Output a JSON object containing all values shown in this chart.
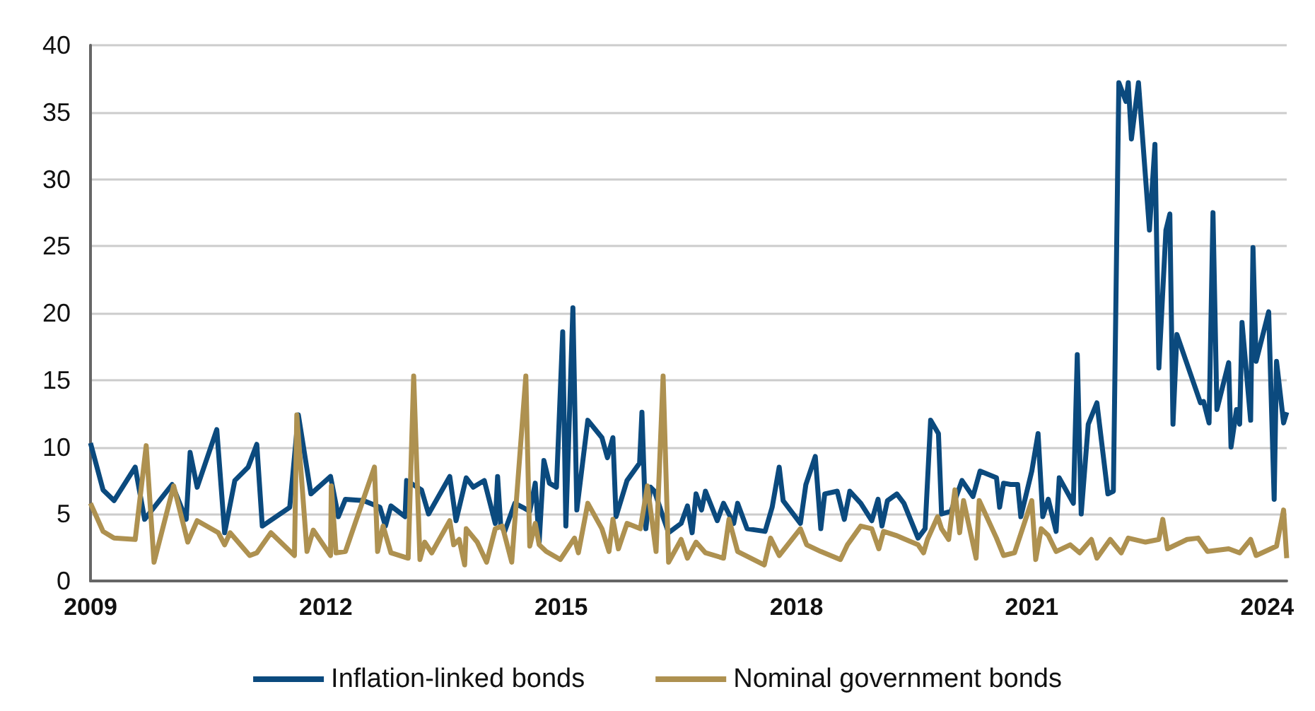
{
  "chart_data": {
    "type": "line",
    "xlim": [
      2009,
      2024.25
    ],
    "xticks": [
      2009,
      2012,
      2015,
      2018,
      2021,
      2024
    ],
    "ylim": [
      0,
      40
    ],
    "yticks": [
      0,
      5,
      10,
      15,
      20,
      25,
      30,
      35,
      40
    ],
    "grid": "y",
    "legend": "bottom",
    "marker": "none",
    "line_style": "solid",
    "series": [
      {
        "name": "Inflation-linked bonds",
        "color": "#0b4a7e",
        "x": [
          2009.0,
          2009.16,
          2009.3,
          2009.57,
          2009.69,
          2010.04,
          2010.22,
          2010.27,
          2010.36,
          2010.61,
          2010.71,
          2010.84,
          2011.01,
          2011.12,
          2011.19,
          2011.54,
          2011.65,
          2011.81,
          2012.06,
          2012.16,
          2012.25,
          2012.48,
          2012.69,
          2012.76,
          2012.83,
          2013.01,
          2013.03,
          2013.22,
          2013.31,
          2013.58,
          2013.66,
          2013.79,
          2013.88,
          2014.02,
          2014.16,
          2014.19,
          2014.23,
          2014.28,
          2014.41,
          2014.51,
          2014.6,
          2014.67,
          2014.72,
          2014.78,
          2014.85,
          2014.94,
          2015.02,
          2015.06,
          2015.15,
          2015.2,
          2015.34,
          2015.52,
          2015.59,
          2015.66,
          2015.7,
          2015.84,
          2016.0,
          2016.03,
          2016.08,
          2016.14,
          2016.19,
          2016.31,
          2016.37,
          2016.53,
          2016.61,
          2016.67,
          2016.72,
          2016.79,
          2016.84,
          2016.99,
          2017.07,
          2017.2,
          2017.25,
          2017.37,
          2017.6,
          2017.69,
          2017.78,
          2017.83,
          2018.05,
          2018.12,
          2018.24,
          2018.31,
          2018.36,
          2018.52,
          2018.61,
          2018.68,
          2018.82,
          2018.96,
          2019.04,
          2019.09,
          2019.16,
          2019.28,
          2019.37,
          2019.55,
          2019.64,
          2019.71,
          2019.81,
          2019.85,
          2019.97,
          2020.11,
          2020.25,
          2020.34,
          2020.55,
          2020.59,
          2020.64,
          2020.73,
          2020.82,
          2020.86,
          2021.0,
          2021.08,
          2021.14,
          2021.21,
          2021.31,
          2021.35,
          2021.53,
          2021.58,
          2021.63,
          2021.72,
          2021.83,
          2021.97,
          2022.04,
          2022.11,
          2022.2,
          2022.23,
          2022.27,
          2022.36,
          2022.5,
          2022.57,
          2022.62,
          2022.71,
          2022.76,
          2022.8,
          2022.85,
          2023.15,
          2023.19,
          2023.26,
          2023.31,
          2023.36,
          2023.51,
          2023.54,
          2023.61,
          2023.65,
          2023.68,
          2023.79,
          2023.82,
          2023.86,
          2024.02,
          2024.09,
          2024.12,
          2024.21,
          2024.25
        ],
        "values": [
          10.3,
          6.8,
          6.0,
          8.5,
          4.6,
          7.2,
          4.6,
          9.6,
          7.0,
          11.3,
          3.6,
          7.5,
          8.5,
          10.2,
          4.1,
          5.5,
          12.4,
          6.5,
          7.8,
          4.8,
          6.1,
          6.0,
          5.5,
          4.1,
          5.6,
          4.8,
          7.5,
          6.8,
          5.0,
          7.8,
          4.5,
          7.7,
          7.0,
          7.5,
          4.3,
          7.8,
          4.1,
          3.7,
          5.8,
          5.5,
          5.2,
          7.3,
          2.9,
          9.0,
          7.3,
          7.0,
          18.6,
          4.1,
          20.4,
          5.3,
          12.0,
          10.7,
          9.2,
          10.7,
          4.8,
          7.5,
          8.8,
          12.6,
          3.9,
          7.0,
          6.7,
          4.6,
          3.6,
          4.3,
          5.6,
          3.6,
          6.5,
          5.3,
          6.7,
          4.5,
          5.8,
          4.3,
          5.8,
          3.9,
          3.7,
          5.5,
          8.5,
          6.0,
          4.3,
          7.2,
          9.3,
          3.9,
          6.5,
          6.7,
          4.6,
          6.7,
          5.8,
          4.5,
          6.1,
          4.1,
          6.0,
          6.5,
          5.8,
          3.2,
          3.9,
          12.0,
          11.0,
          5.0,
          5.2,
          7.5,
          6.3,
          8.2,
          7.7,
          5.5,
          7.3,
          7.2,
          7.2,
          4.8,
          8.2,
          11.0,
          4.8,
          6.1,
          3.7,
          7.7,
          5.8,
          16.9,
          5.0,
          11.7,
          13.3,
          6.5,
          6.7,
          37.2,
          35.8,
          37.2,
          33.0,
          37.2,
          26.2,
          32.6,
          15.9,
          26.2,
          27.4,
          11.7,
          18.4,
          13.3,
          13.4,
          11.8,
          27.5,
          12.8,
          16.3,
          10.0,
          12.8,
          11.7,
          19.3,
          12.0,
          24.9,
          16.4,
          20.1,
          6.1,
          16.4,
          11.8,
          12.6
        ]
      },
      {
        "name": "Nominal government bonds",
        "color": "#ae9150",
        "x": [
          2009.0,
          2009.16,
          2009.3,
          2009.57,
          2009.71,
          2009.81,
          2010.06,
          2010.24,
          2010.36,
          2010.63,
          2010.71,
          2010.78,
          2011.03,
          2011.12,
          2011.3,
          2011.6,
          2011.63,
          2011.76,
          2011.84,
          2012.06,
          2012.07,
          2012.13,
          2012.25,
          2012.62,
          2012.66,
          2012.73,
          2012.83,
          2013.05,
          2013.12,
          2013.2,
          2013.26,
          2013.35,
          2013.58,
          2013.63,
          2013.7,
          2013.77,
          2013.79,
          2013.93,
          2014.05,
          2014.16,
          2014.25,
          2014.37,
          2014.55,
          2014.6,
          2014.67,
          2014.72,
          2014.81,
          2014.99,
          2015.17,
          2015.22,
          2015.34,
          2015.52,
          2015.61,
          2015.66,
          2015.73,
          2015.84,
          2016.01,
          2016.1,
          2016.21,
          2016.3,
          2016.37,
          2016.53,
          2016.61,
          2016.72,
          2016.84,
          2017.07,
          2017.14,
          2017.25,
          2017.59,
          2017.67,
          2017.78,
          2018.05,
          2018.13,
          2018.31,
          2018.56,
          2018.65,
          2018.82,
          2018.96,
          2019.05,
          2019.11,
          2019.27,
          2019.55,
          2019.62,
          2019.67,
          2019.8,
          2019.85,
          2019.94,
          2020.02,
          2020.08,
          2020.13,
          2020.29,
          2020.33,
          2020.55,
          2020.64,
          2020.78,
          2021.0,
          2021.05,
          2021.12,
          2021.21,
          2021.31,
          2021.49,
          2021.61,
          2021.76,
          2021.83,
          2022.0,
          2022.14,
          2022.23,
          2022.45,
          2022.62,
          2022.67,
          2022.73,
          2022.98,
          2023.12,
          2023.24,
          2023.51,
          2023.65,
          2023.79,
          2023.86,
          2024.12,
          2024.21,
          2024.25
        ],
        "values": [
          5.8,
          3.7,
          3.2,
          3.1,
          10.1,
          1.4,
          7.1,
          2.9,
          4.5,
          3.6,
          2.7,
          3.6,
          1.9,
          2.1,
          3.6,
          1.9,
          12.4,
          2.2,
          3.8,
          1.9,
          7.1,
          2.1,
          2.2,
          8.5,
          2.2,
          4.1,
          2.1,
          1.7,
          15.3,
          1.6,
          2.9,
          2.1,
          4.5,
          2.7,
          3.1,
          1.2,
          3.9,
          2.9,
          1.4,
          3.9,
          4.1,
          1.4,
          15.3,
          2.6,
          4.3,
          2.7,
          2.2,
          1.6,
          3.2,
          2.1,
          5.8,
          3.9,
          2.2,
          4.6,
          2.4,
          4.3,
          3.9,
          7.1,
          2.2,
          15.3,
          1.4,
          3.1,
          1.7,
          2.9,
          2.1,
          1.7,
          4.6,
          2.2,
          1.2,
          3.2,
          1.9,
          3.9,
          2.7,
          2.2,
          1.6,
          2.7,
          4.1,
          3.9,
          2.4,
          3.7,
          3.4,
          2.7,
          2.1,
          3.1,
          4.8,
          3.9,
          3.1,
          6.8,
          3.6,
          6.0,
          1.7,
          6.0,
          3.2,
          1.9,
          2.1,
          6.0,
          1.6,
          3.9,
          3.4,
          2.2,
          2.7,
          2.1,
          3.1,
          1.7,
          3.1,
          2.1,
          3.2,
          2.9,
          3.1,
          4.6,
          2.4,
          3.1,
          3.2,
          2.2,
          2.4,
          2.1,
          3.1,
          1.9,
          2.6,
          5.3,
          1.7
        ]
      }
    ]
  }
}
